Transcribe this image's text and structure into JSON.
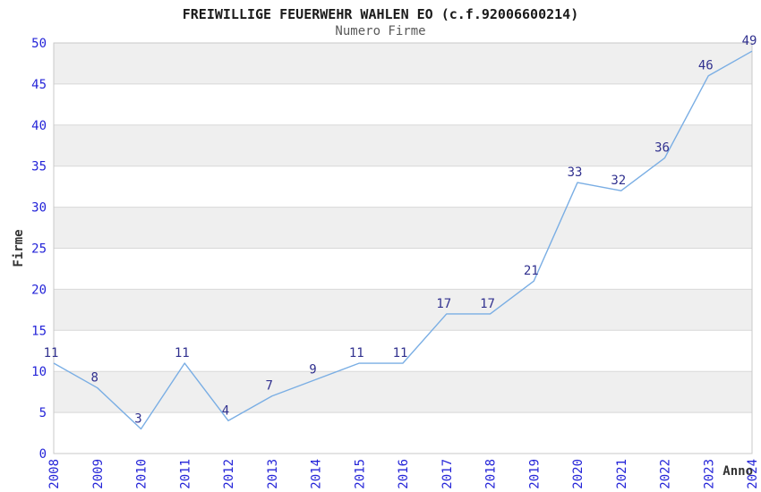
{
  "chart_data": {
    "type": "line",
    "title": "FREIWILLIGE FEUERWEHR WAHLEN EO (c.f.92006600214)",
    "subtitle": "Numero Firme",
    "xlabel": "Anno",
    "ylabel": "Firme",
    "categories": [
      "2008",
      "2009",
      "2010",
      "2011",
      "2012",
      "2013",
      "2014",
      "2015",
      "2016",
      "2017",
      "2018",
      "2019",
      "2020",
      "2021",
      "2022",
      "2023",
      "2024"
    ],
    "values": [
      11,
      8,
      3,
      11,
      4,
      7,
      9,
      11,
      11,
      17,
      17,
      21,
      33,
      32,
      36,
      46,
      49
    ],
    "ylim": [
      0,
      50
    ],
    "ytick_step": 5,
    "grid": "horizontal",
    "bands": "alternating-horizontal",
    "legend": "none",
    "data_labels_shown": true,
    "colors": {
      "line": "#7aaee4",
      "tick_label": "#2424d8",
      "data_label": "#31318f",
      "band": "#efefef",
      "gridline": "#d8d8d8",
      "frame": "#c9c9c9",
      "title": "#1a1a1a",
      "subtitle": "#595959",
      "axis_title": "#333333",
      "background": "#ffffff"
    }
  }
}
